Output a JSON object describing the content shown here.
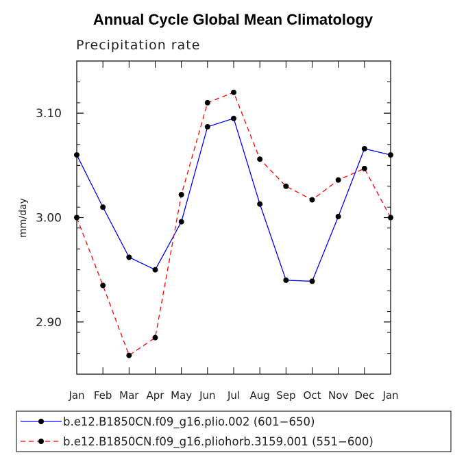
{
  "chart_data": {
    "type": "line",
    "title": "Annual Cycle Global Mean Climatology",
    "subtitle": "Precipitation rate",
    "ylabel": "mm/day",
    "xlabel": "",
    "categories": [
      "Jan",
      "Feb",
      "Mar",
      "Apr",
      "May",
      "Jun",
      "Jul",
      "Aug",
      "Sep",
      "Oct",
      "Nov",
      "Dec",
      "Jan"
    ],
    "ylim": [
      2.85,
      3.15
    ],
    "yticks_major": [
      2.9,
      3.0,
      3.1
    ],
    "yticks_major_labels": [
      "2.90",
      "3.00",
      "3.10"
    ],
    "yticks_minor_step": 0.02,
    "grid": false,
    "legend_position": "bottom",
    "series": [
      {
        "name": "b.e12.B1850CN.f09_g16.plio.002 (601−650)",
        "color": "#0000ff",
        "dash": "solid",
        "values": [
          3.06,
          3.01,
          2.962,
          2.95,
          2.996,
          3.087,
          3.095,
          3.013,
          2.94,
          2.939,
          3.001,
          3.066,
          3.06
        ]
      },
      {
        "name": "b.e12.B1850CN.f09_g16.pliohorb.3159.001 (551−600)",
        "color": "#ff0000",
        "dash": "dashed",
        "values": [
          3.0,
          2.935,
          2.868,
          2.885,
          3.022,
          3.11,
          3.12,
          3.056,
          3.03,
          3.017,
          3.036,
          3.047,
          3.0
        ]
      }
    ]
  }
}
